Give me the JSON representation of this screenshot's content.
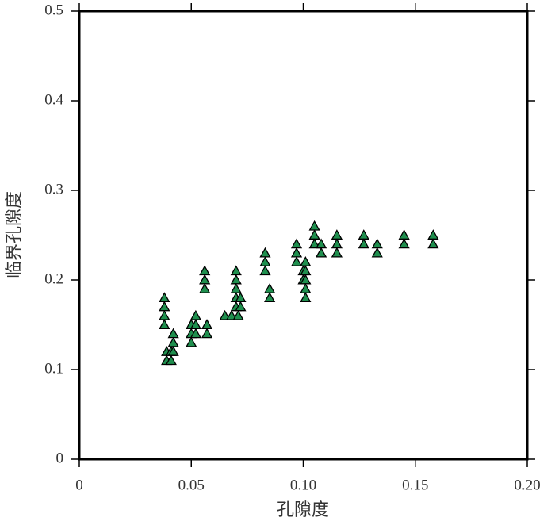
{
  "chart_data": {
    "type": "scatter",
    "xlabel": "孔隙度",
    "ylabel": "临界孔隙度",
    "x": [
      0.038,
      0.038,
      0.038,
      0.038,
      0.039,
      0.039,
      0.041,
      0.041,
      0.042,
      0.042,
      0.042,
      0.05,
      0.05,
      0.05,
      0.052,
      0.052,
      0.052,
      0.056,
      0.056,
      0.056,
      0.057,
      0.057,
      0.065,
      0.068,
      0.07,
      0.07,
      0.07,
      0.07,
      0.07,
      0.071,
      0.072,
      0.072,
      0.083,
      0.083,
      0.083,
      0.085,
      0.085,
      0.097,
      0.097,
      0.097,
      0.1,
      0.1,
      0.101,
      0.101,
      0.101,
      0.101,
      0.101,
      0.105,
      0.105,
      0.105,
      0.108,
      0.108,
      0.115,
      0.115,
      0.115,
      0.127,
      0.127,
      0.133,
      0.133,
      0.145,
      0.145,
      0.158,
      0.158
    ],
    "values": [
      0.18,
      0.17,
      0.16,
      0.15,
      0.12,
      0.11,
      0.12,
      0.11,
      0.14,
      0.13,
      0.12,
      0.15,
      0.14,
      0.13,
      0.16,
      0.15,
      0.14,
      0.21,
      0.2,
      0.19,
      0.15,
      0.14,
      0.16,
      0.16,
      0.21,
      0.2,
      0.19,
      0.18,
      0.17,
      0.16,
      0.18,
      0.17,
      0.23,
      0.22,
      0.21,
      0.19,
      0.18,
      0.24,
      0.23,
      0.22,
      0.21,
      0.2,
      0.22,
      0.21,
      0.2,
      0.19,
      0.18,
      0.26,
      0.25,
      0.24,
      0.24,
      0.23,
      0.25,
      0.24,
      0.23,
      0.25,
      0.24,
      0.24,
      0.23,
      0.25,
      0.24,
      0.25,
      0.24
    ],
    "color": "#1f8f4e",
    "xlim": [
      0,
      0.2
    ],
    "ylim": [
      0,
      0.5
    ],
    "xticks": [
      0,
      0.05,
      {
        "value": 0.1,
        "label": "0.10"
      },
      0.15,
      {
        "value": 0.2,
        "label": "0.20"
      }
    ],
    "yticks": [
      0,
      0.1,
      0.2,
      0.3,
      0.4,
      0.5
    ]
  }
}
